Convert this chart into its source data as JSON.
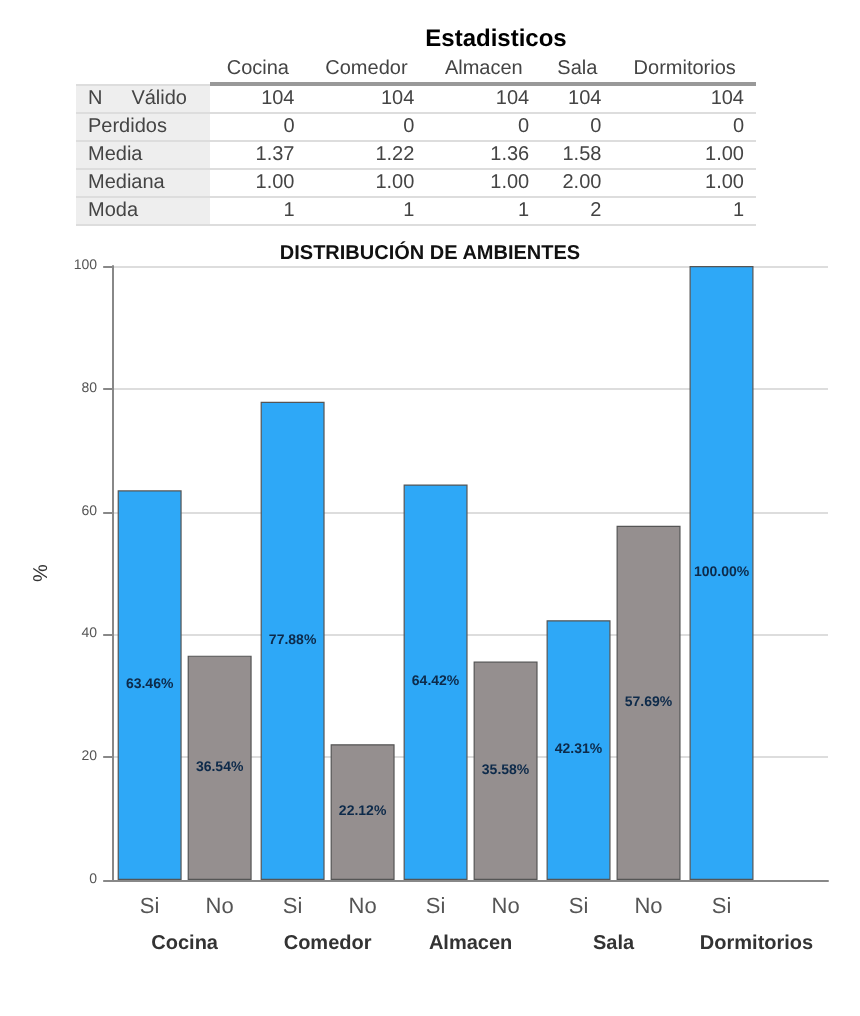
{
  "chart_data": [
    {
      "type": "other",
      "title": "Estadisticos",
      "categories": [
        "Cocina",
        "Comedor",
        "Almacen",
        "Sala",
        "Dormitorios"
      ],
      "y_categories": [
        "Válido",
        "Perdidos",
        "Media",
        "Mediana",
        "Moda"
      ],
      "annotations": [
        "N"
      ],
      "cell_labels": [
        [
          "104",
          "104",
          "104",
          "104",
          "104"
        ],
        [
          "0",
          "0",
          "0",
          "0",
          "0"
        ],
        [
          "1.37",
          "1.22",
          "1.36",
          "1.58",
          "1.00"
        ],
        [
          "1.00",
          "1.00",
          "1.00",
          "2.00",
          "1.00"
        ],
        [
          "1",
          "1",
          "1",
          "2",
          "1"
        ]
      ]
    },
    {
      "type": "bar",
      "title": "DISTRIBUCIÓN DE AMBIENTES",
      "ylabel": "%",
      "categories": [
        "Cocina",
        "Comedor",
        "Almacen",
        "Sala",
        "Dormitorios"
      ],
      "series": [
        {
          "name": "Si",
          "color": "#2ea8f7",
          "values": [
            63.46,
            77.88,
            64.42,
            42.31,
            100.0
          ],
          "value_labels": [
            "63.46%",
            "77.88%",
            "64.42%",
            "42.31%",
            "100.00%"
          ]
        },
        {
          "name": "No",
          "color": "#958f8f",
          "values": [
            36.54,
            22.12,
            35.58,
            57.69,
            null
          ],
          "value_labels": [
            "36.54%",
            "22.12%",
            "35.58%",
            "57.69%",
            null
          ]
        }
      ],
      "ylim": [
        0,
        100
      ],
      "yticks": [
        0,
        20,
        40,
        60,
        80,
        100
      ],
      "grid": "y",
      "legend": false
    }
  ]
}
